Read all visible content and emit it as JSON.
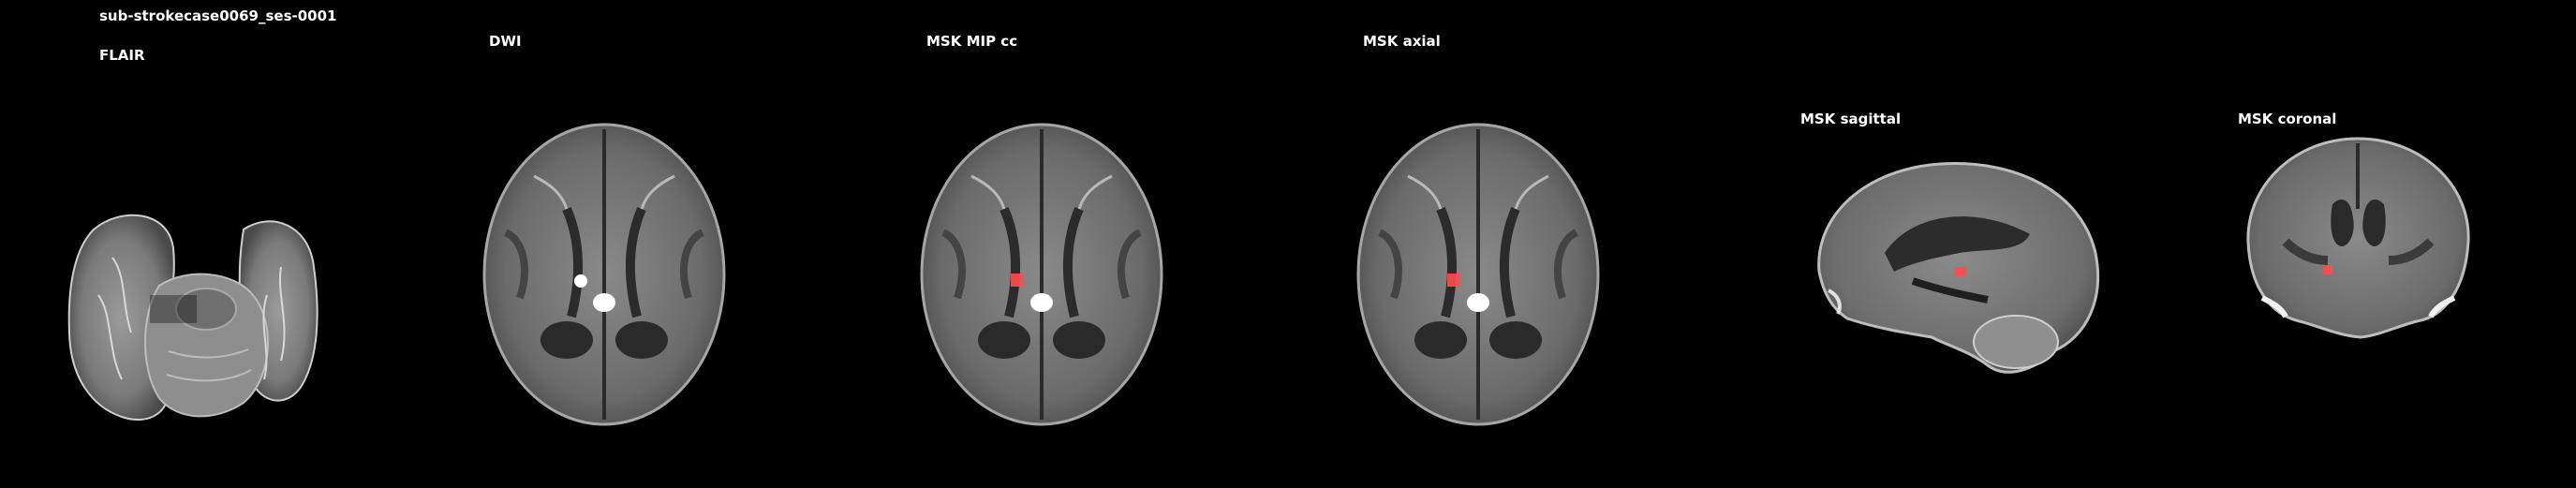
{
  "subject_title": "sub-strokecase0069_ses-0001",
  "panels": [
    {
      "id": "flair",
      "label": "FLAIR"
    },
    {
      "id": "dwi",
      "label": "DWI"
    },
    {
      "id": "msk-mip",
      "label": "MSK MIP cc"
    },
    {
      "id": "msk-axial",
      "label": "MSK axial"
    },
    {
      "id": "msk-sagittal",
      "label": "MSK sagittal"
    },
    {
      "id": "msk-coronal",
      "label": "MSK coronal"
    }
  ],
  "colors": {
    "background": "#000000",
    "text": "#ffffff",
    "mask": "#ff4d4d"
  }
}
